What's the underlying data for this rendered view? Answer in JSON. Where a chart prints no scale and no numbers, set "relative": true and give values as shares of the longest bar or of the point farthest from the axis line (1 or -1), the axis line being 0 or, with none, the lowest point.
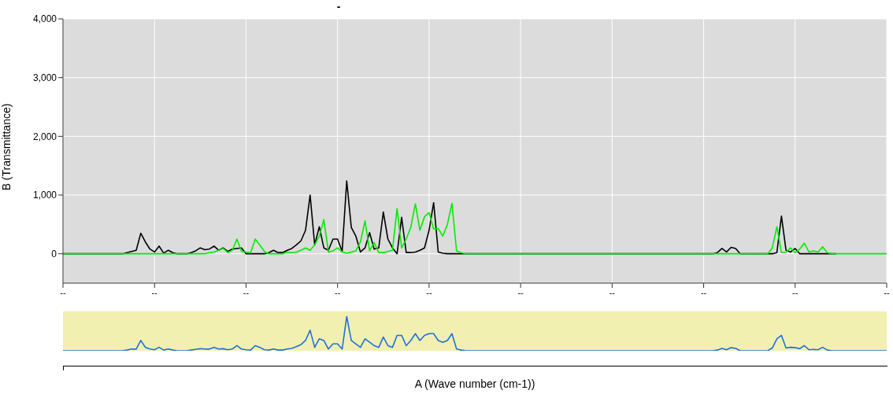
{
  "chart_data": [
    {
      "type": "line",
      "title": "-",
      "ylabel": "B (Transmittance)",
      "categories": [
        "--",
        null,
        null,
        null,
        null,
        null,
        null,
        null,
        null,
        null,
        null,
        null,
        null,
        null,
        null,
        null,
        null,
        null,
        null,
        null,
        "--",
        null,
        null,
        null,
        null,
        null,
        null,
        null,
        null,
        null,
        null,
        null,
        null,
        null,
        null,
        null,
        null,
        null,
        null,
        null,
        "--",
        null,
        null,
        null,
        null,
        null,
        null,
        null,
        null,
        null,
        null,
        null,
        null,
        null,
        null,
        null,
        null,
        null,
        null,
        null,
        "--",
        null,
        null,
        null,
        null,
        null,
        null,
        null,
        null,
        null,
        null,
        null,
        null,
        null,
        null,
        null,
        null,
        null,
        null,
        null,
        "--",
        null,
        null,
        null,
        null,
        null,
        null,
        null,
        null,
        null,
        null,
        null,
        null,
        null,
        null,
        null,
        null,
        null,
        null,
        null,
        "--",
        null,
        null,
        null,
        null,
        null,
        null,
        null,
        null,
        null,
        null,
        null,
        null,
        null,
        null,
        null,
        null,
        null,
        null,
        null,
        "--",
        null,
        null,
        null,
        null,
        null,
        null,
        null,
        null,
        null,
        null,
        null,
        null,
        null,
        null,
        null,
        null,
        null,
        null,
        null,
        "--",
        null,
        null,
        null,
        null,
        null,
        null,
        null,
        null,
        null,
        null,
        null,
        null,
        null,
        null,
        null,
        null,
        null,
        null,
        null,
        "--",
        null,
        null,
        null,
        null,
        null,
        null,
        null,
        null,
        null,
        null,
        null,
        null,
        null,
        null,
        null,
        null,
        null,
        null,
        null,
        "--"
      ],
      "ylim": [
        -500,
        4000
      ],
      "yticks": [
        0,
        {
          "value": 1000,
          "label": "1,000"
        },
        {
          "value": 2000,
          "label": "2,000"
        },
        {
          "value": 3000,
          "label": "3,000"
        },
        {
          "value": 4000,
          "label": "4,000"
        }
      ],
      "grid": true,
      "series": [
        {
          "color": "#000000",
          "values": [
            0,
            0,
            0,
            0,
            0,
            0,
            0,
            0,
            0,
            0,
            0,
            0,
            0,
            0,
            20,
            40,
            60,
            350,
            200,
            80,
            30,
            130,
            10,
            60,
            20,
            0,
            0,
            0,
            20,
            50,
            100,
            70,
            80,
            130,
            60,
            100,
            40,
            80,
            90,
            100,
            0,
            0,
            0,
            0,
            0,
            20,
            60,
            20,
            20,
            60,
            90,
            150,
            220,
            400,
            1000,
            150,
            460,
            100,
            60,
            250,
            250,
            40,
            1240,
            450,
            300,
            30,
            100,
            360,
            80,
            100,
            710,
            250,
            100,
            0,
            620,
            20,
            20,
            30,
            60,
            100,
            400,
            870,
            30,
            10,
            0,
            0,
            0,
            0,
            0,
            0,
            0,
            0,
            0,
            0,
            0,
            0,
            0,
            0,
            0,
            0,
            0,
            0,
            0,
            0,
            0,
            0,
            0,
            0,
            0,
            0,
            0,
            0,
            0,
            0,
            0,
            0,
            0,
            0,
            0,
            0,
            0,
            0,
            0,
            0,
            0,
            0,
            0,
            0,
            0,
            0,
            0,
            0,
            0,
            0,
            0,
            0,
            0,
            0,
            0,
            0,
            0,
            0,
            0,
            20,
            90,
            30,
            110,
            90,
            0,
            0,
            0,
            0,
            0,
            0,
            0,
            0,
            20,
            640,
            60,
            30,
            90,
            0,
            0,
            0,
            0,
            0,
            0,
            0,
            0,
            0,
            null,
            null,
            null,
            null,
            null,
            null,
            null,
            null,
            null,
            null,
            null
          ]
        },
        {
          "color": "#00ee00",
          "values": [
            0,
            0,
            0,
            0,
            0,
            0,
            0,
            0,
            0,
            0,
            0,
            0,
            0,
            0,
            0,
            0,
            0,
            0,
            0,
            0,
            0,
            0,
            0,
            0,
            0,
            0,
            0,
            0,
            0,
            0,
            0,
            0,
            20,
            30,
            60,
            90,
            20,
            60,
            250,
            40,
            30,
            20,
            250,
            150,
            40,
            0,
            0,
            0,
            0,
            30,
            20,
            30,
            60,
            100,
            60,
            150,
            300,
            580,
            30,
            50,
            100,
            30,
            10,
            30,
            50,
            200,
            560,
            50,
            190,
            20,
            20,
            40,
            60,
            770,
            100,
            250,
            450,
            850,
            400,
            630,
            700,
            420,
            430,
            300,
            500,
            860,
            50,
            20,
            0,
            0,
            0,
            0,
            0,
            0,
            0,
            0,
            0,
            0,
            0,
            0,
            0,
            0,
            0,
            0,
            0,
            0,
            0,
            0,
            0,
            0,
            0,
            0,
            0,
            0,
            0,
            0,
            0,
            0,
            0,
            0,
            0,
            0,
            0,
            0,
            0,
            0,
            0,
            0,
            0,
            0,
            0,
            0,
            0,
            0,
            0,
            0,
            0,
            0,
            0,
            0,
            0,
            0,
            0,
            0,
            0,
            0,
            0,
            0,
            0,
            0,
            0,
            0,
            0,
            0,
            0,
            100,
            460,
            20,
            30,
            100,
            20,
            80,
            180,
            30,
            50,
            30,
            120,
            20,
            0,
            0,
            0,
            0,
            0,
            0,
            0,
            0,
            0,
            0,
            0,
            0,
            0
          ]
        }
      ]
    },
    {
      "type": "line",
      "relative": true,
      "xlabel": "A (Wave number (cm-1))",
      "categories": [
        null,
        null,
        null,
        null,
        null,
        null,
        null,
        null,
        null,
        null,
        null,
        null,
        null,
        null,
        null,
        null,
        null,
        null,
        null,
        null,
        null,
        null,
        null,
        null,
        null,
        null,
        null,
        null,
        null,
        null,
        null,
        null,
        null,
        null,
        null,
        null,
        null,
        null,
        null,
        null,
        null,
        null,
        null,
        null,
        null,
        null,
        null,
        null,
        null,
        null,
        null,
        null,
        null,
        null,
        null,
        null,
        null,
        null,
        null,
        null,
        null,
        null,
        null,
        null,
        null,
        null,
        null,
        null,
        null,
        null,
        null,
        null,
        null,
        null,
        null,
        null,
        null,
        null,
        null,
        null,
        null,
        null,
        null,
        null,
        null,
        null,
        null,
        null,
        null,
        null,
        null,
        null,
        null,
        null,
        null,
        null,
        null,
        null,
        null,
        null,
        null,
        null,
        null,
        null,
        null,
        null,
        null,
        null,
        null,
        null,
        null,
        null,
        null,
        null,
        null,
        null,
        null,
        null,
        null,
        null,
        null,
        null,
        null,
        null,
        null,
        null,
        null,
        null,
        null,
        null,
        null,
        null,
        null,
        null,
        null,
        null,
        null,
        null,
        null,
        null,
        null,
        null,
        null,
        null,
        null,
        null,
        null,
        null,
        null,
        null,
        null,
        null,
        null,
        null,
        null,
        null,
        null,
        null,
        null,
        null,
        null,
        null,
        null,
        null,
        null,
        null,
        null,
        null,
        null,
        null,
        null,
        null,
        null,
        null,
        null,
        null,
        null,
        null,
        null,
        null,
        null
      ],
      "series": [
        {
          "color": "#1f6fe0",
          "values": [
            0,
            0,
            0,
            0,
            0,
            0,
            0,
            0,
            0,
            0,
            0,
            0,
            0,
            0,
            0.02,
            0.05,
            0.05,
            0.3,
            0.1,
            0.05,
            0.03,
            0.1,
            0.02,
            0.05,
            0.02,
            0,
            0,
            0,
            0.02,
            0.04,
            0.06,
            0.05,
            0.05,
            0.1,
            0.05,
            0.06,
            0.03,
            0.05,
            0.15,
            0.05,
            0.03,
            0.02,
            0.15,
            0.1,
            0.03,
            0.02,
            0.05,
            0.02,
            0.02,
            0.05,
            0.07,
            0.12,
            0.18,
            0.3,
            0.6,
            0.1,
            0.35,
            0.3,
            0.05,
            0.2,
            0.2,
            0.05,
            1.0,
            0.3,
            0.2,
            0.1,
            0.35,
            0.25,
            0.15,
            0.1,
            0.4,
            0.15,
            0.1,
            0.45,
            0.45,
            0.15,
            0.3,
            0.5,
            0.3,
            0.45,
            0.5,
            0.5,
            0.3,
            0.25,
            0.3,
            0.5,
            0.05,
            0.02,
            0,
            0,
            0,
            0,
            0,
            0,
            0,
            0,
            0,
            0,
            0,
            0,
            0,
            0,
            0,
            0,
            0,
            0,
            0,
            0,
            0,
            0,
            0,
            0,
            0,
            0,
            0,
            0,
            0,
            0,
            0,
            0,
            0,
            0,
            0,
            0,
            0,
            0,
            0,
            0,
            0,
            0,
            0,
            0,
            0,
            0,
            0,
            0,
            0,
            0,
            0,
            0,
            0,
            0,
            0,
            0.02,
            0.07,
            0.03,
            0.09,
            0.07,
            0,
            0,
            0,
            0,
            0,
            0,
            0,
            0.08,
            0.35,
            0.45,
            0.08,
            0.1,
            0.09,
            0.06,
            0.15,
            0.03,
            0.04,
            0.03,
            0.1,
            0.02,
            0,
            0,
            0,
            0,
            0,
            0,
            0,
            0,
            0,
            0,
            0,
            0,
            0
          ]
        }
      ]
    }
  ]
}
